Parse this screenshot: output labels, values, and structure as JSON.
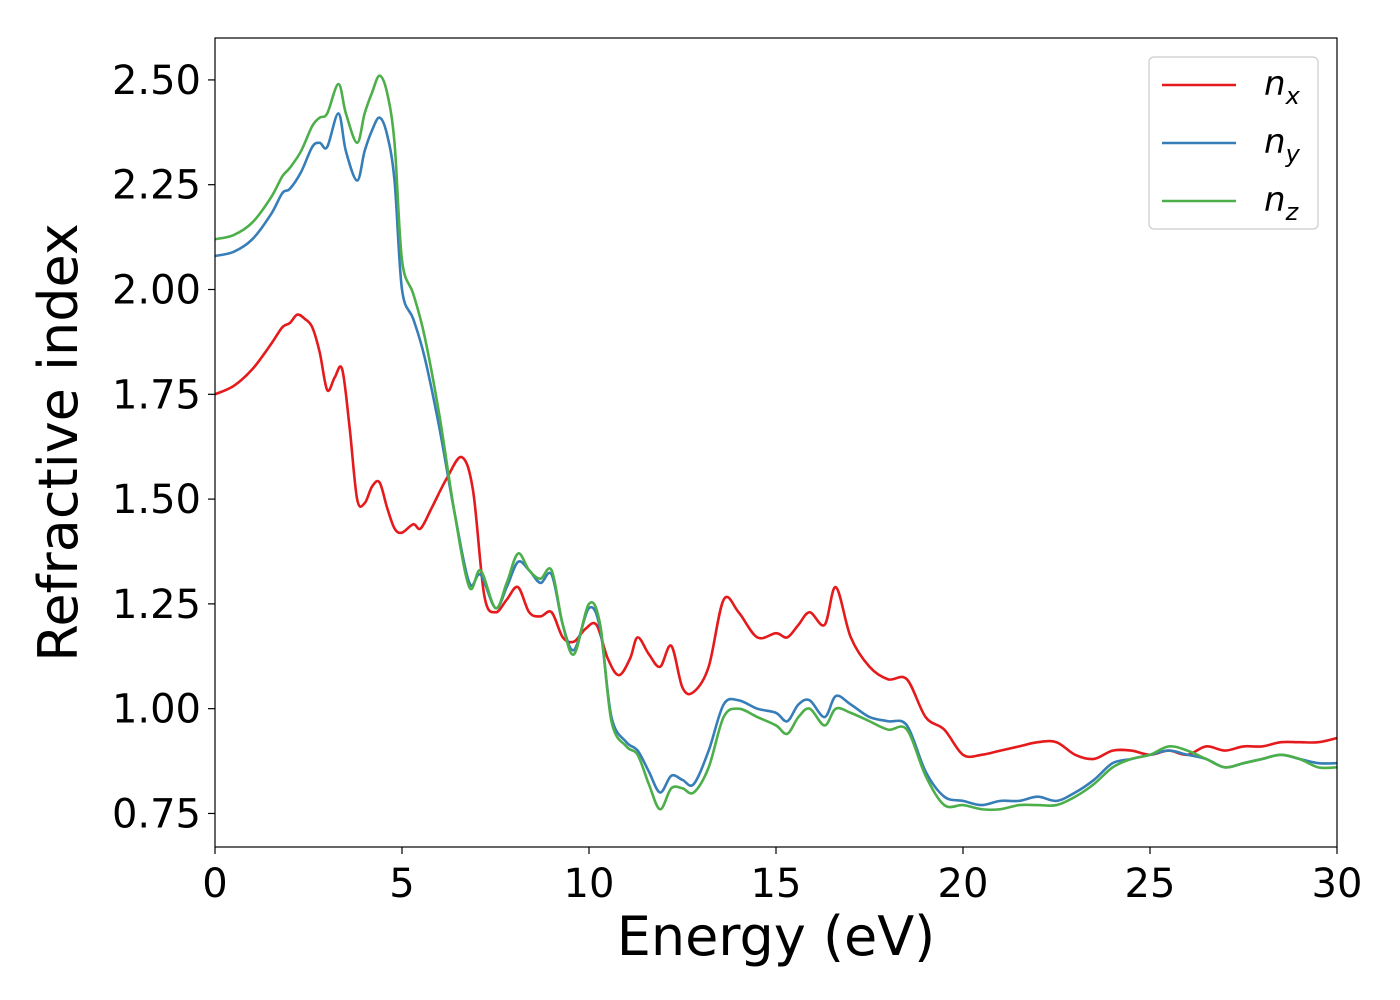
{
  "chart_data": {
    "type": "line",
    "title": "",
    "xlabel": "Energy (eV)",
    "ylabel": "Refractive index",
    "xlim": [
      0,
      30
    ],
    "ylim": [
      0.67,
      2.6
    ],
    "xticks": [
      0,
      5,
      10,
      15,
      20,
      25,
      30
    ],
    "xtick_labels": [
      "0",
      "5",
      "10",
      "15",
      "20",
      "25",
      "30"
    ],
    "yticks": [
      0.75,
      1.0,
      1.25,
      1.5,
      1.75,
      2.0,
      2.25,
      2.5
    ],
    "ytick_labels": [
      "0.75",
      "1.00",
      "1.25",
      "1.50",
      "1.75",
      "2.00",
      "2.25",
      "2.50"
    ],
    "grid": false,
    "legend_position": "top-right",
    "series": [
      {
        "name": "n_x",
        "label_base": "n",
        "label_sub": "x",
        "color": "#e41a1c",
        "x": [
          0,
          0.5,
          1.0,
          1.5,
          1.8,
          2.0,
          2.2,
          2.4,
          2.6,
          2.8,
          3.0,
          3.2,
          3.4,
          3.6,
          3.8,
          4.0,
          4.2,
          4.4,
          4.6,
          4.8,
          5.0,
          5.3,
          5.5,
          5.8,
          6.2,
          6.6,
          6.9,
          7.2,
          7.5,
          7.8,
          8.1,
          8.4,
          8.7,
          9.0,
          9.3,
          9.6,
          9.9,
          10.2,
          10.5,
          10.8,
          11.1,
          11.3,
          11.6,
          11.9,
          12.2,
          12.5,
          12.8,
          13.2,
          13.6,
          14.0,
          14.5,
          15.0,
          15.3,
          15.6,
          15.9,
          16.3,
          16.6,
          17.0,
          17.5,
          18.0,
          18.5,
          19.0,
          19.5,
          20.0,
          20.5,
          21.0,
          21.5,
          22.0,
          22.5,
          23.0,
          23.5,
          24.0,
          24.5,
          25.0,
          25.5,
          26.0,
          26.5,
          27.0,
          27.5,
          28.0,
          28.5,
          29.0,
          29.5,
          30.0
        ],
        "y": [
          1.75,
          1.77,
          1.81,
          1.87,
          1.91,
          1.92,
          1.94,
          1.93,
          1.91,
          1.85,
          1.76,
          1.79,
          1.81,
          1.67,
          1.5,
          1.49,
          1.53,
          1.54,
          1.48,
          1.43,
          1.42,
          1.44,
          1.43,
          1.48,
          1.55,
          1.6,
          1.52,
          1.27,
          1.23,
          1.26,
          1.29,
          1.23,
          1.22,
          1.23,
          1.17,
          1.16,
          1.19,
          1.2,
          1.12,
          1.08,
          1.12,
          1.17,
          1.13,
          1.1,
          1.15,
          1.05,
          1.04,
          1.1,
          1.26,
          1.23,
          1.17,
          1.18,
          1.17,
          1.2,
          1.23,
          1.2,
          1.29,
          1.17,
          1.1,
          1.07,
          1.07,
          0.98,
          0.95,
          0.89,
          0.89,
          0.9,
          0.91,
          0.92,
          0.92,
          0.89,
          0.88,
          0.9,
          0.9,
          0.89,
          0.9,
          0.89,
          0.91,
          0.9,
          0.91,
          0.91,
          0.92,
          0.92,
          0.92,
          0.93
        ]
      },
      {
        "name": "n_y",
        "label_base": "n",
        "label_sub": "y",
        "color": "#377eb8",
        "x": [
          0,
          0.5,
          1.0,
          1.5,
          1.8,
          2.0,
          2.3,
          2.6,
          2.8,
          3.0,
          3.3,
          3.5,
          3.8,
          4.0,
          4.2,
          4.4,
          4.6,
          4.8,
          5.0,
          5.3,
          5.6,
          6.0,
          6.4,
          6.8,
          7.1,
          7.5,
          7.8,
          8.1,
          8.4,
          8.7,
          9.0,
          9.3,
          9.6,
          10.0,
          10.3,
          10.6,
          11.0,
          11.3,
          11.6,
          11.9,
          12.2,
          12.5,
          12.8,
          13.2,
          13.6,
          14.0,
          14.5,
          15.0,
          15.3,
          15.6,
          15.9,
          16.3,
          16.6,
          17.0,
          17.5,
          18.0,
          18.5,
          19.0,
          19.5,
          20.0,
          20.5,
          21.0,
          21.5,
          22.0,
          22.5,
          23.0,
          23.5,
          24.0,
          24.5,
          25.0,
          25.5,
          26.0,
          26.5,
          27.0,
          27.5,
          28.0,
          28.5,
          29.0,
          29.5,
          30.0
        ],
        "y": [
          2.08,
          2.09,
          2.12,
          2.18,
          2.23,
          2.24,
          2.28,
          2.34,
          2.35,
          2.34,
          2.42,
          2.33,
          2.26,
          2.33,
          2.38,
          2.41,
          2.37,
          2.26,
          2.0,
          1.93,
          1.84,
          1.67,
          1.47,
          1.3,
          1.32,
          1.24,
          1.29,
          1.35,
          1.33,
          1.3,
          1.32,
          1.2,
          1.14,
          1.24,
          1.19,
          0.98,
          0.92,
          0.9,
          0.85,
          0.8,
          0.84,
          0.83,
          0.82,
          0.9,
          1.01,
          1.02,
          1.0,
          0.99,
          0.97,
          1.01,
          1.02,
          0.98,
          1.03,
          1.01,
          0.98,
          0.97,
          0.96,
          0.85,
          0.79,
          0.78,
          0.77,
          0.78,
          0.78,
          0.79,
          0.78,
          0.8,
          0.83,
          0.87,
          0.88,
          0.89,
          0.9,
          0.89,
          0.88,
          0.86,
          0.87,
          0.88,
          0.89,
          0.88,
          0.87,
          0.87
        ]
      },
      {
        "name": "n_z",
        "label_base": "n",
        "label_sub": "z",
        "color": "#4daf4a",
        "x": [
          0,
          0.5,
          1.0,
          1.5,
          1.8,
          2.0,
          2.3,
          2.6,
          2.8,
          3.0,
          3.3,
          3.5,
          3.8,
          4.0,
          4.2,
          4.4,
          4.6,
          4.8,
          5.0,
          5.3,
          5.6,
          6.0,
          6.4,
          6.8,
          7.1,
          7.5,
          7.8,
          8.1,
          8.4,
          8.7,
          9.0,
          9.3,
          9.6,
          10.0,
          10.3,
          10.6,
          11.0,
          11.3,
          11.6,
          11.9,
          12.2,
          12.5,
          12.8,
          13.2,
          13.6,
          14.0,
          14.5,
          15.0,
          15.3,
          15.6,
          15.9,
          16.3,
          16.6,
          17.0,
          17.5,
          18.0,
          18.5,
          19.0,
          19.5,
          20.0,
          20.5,
          21.0,
          21.5,
          22.0,
          22.5,
          23.0,
          23.5,
          24.0,
          24.5,
          25.0,
          25.5,
          26.0,
          26.5,
          27.0,
          27.5,
          28.0,
          28.5,
          29.0,
          29.5,
          30.0
        ],
        "y": [
          2.12,
          2.13,
          2.16,
          2.22,
          2.27,
          2.29,
          2.33,
          2.39,
          2.41,
          2.42,
          2.49,
          2.42,
          2.35,
          2.42,
          2.47,
          2.51,
          2.47,
          2.35,
          2.07,
          1.99,
          1.89,
          1.7,
          1.47,
          1.29,
          1.33,
          1.24,
          1.3,
          1.37,
          1.33,
          1.31,
          1.33,
          1.2,
          1.13,
          1.25,
          1.2,
          0.97,
          0.91,
          0.89,
          0.82,
          0.76,
          0.81,
          0.81,
          0.8,
          0.86,
          0.98,
          1.0,
          0.98,
          0.96,
          0.94,
          0.98,
          1.0,
          0.96,
          1.0,
          0.99,
          0.97,
          0.95,
          0.95,
          0.84,
          0.77,
          0.77,
          0.76,
          0.76,
          0.77,
          0.77,
          0.77,
          0.79,
          0.82,
          0.86,
          0.88,
          0.89,
          0.91,
          0.9,
          0.88,
          0.86,
          0.87,
          0.88,
          0.89,
          0.88,
          0.86,
          0.86
        ]
      }
    ]
  }
}
